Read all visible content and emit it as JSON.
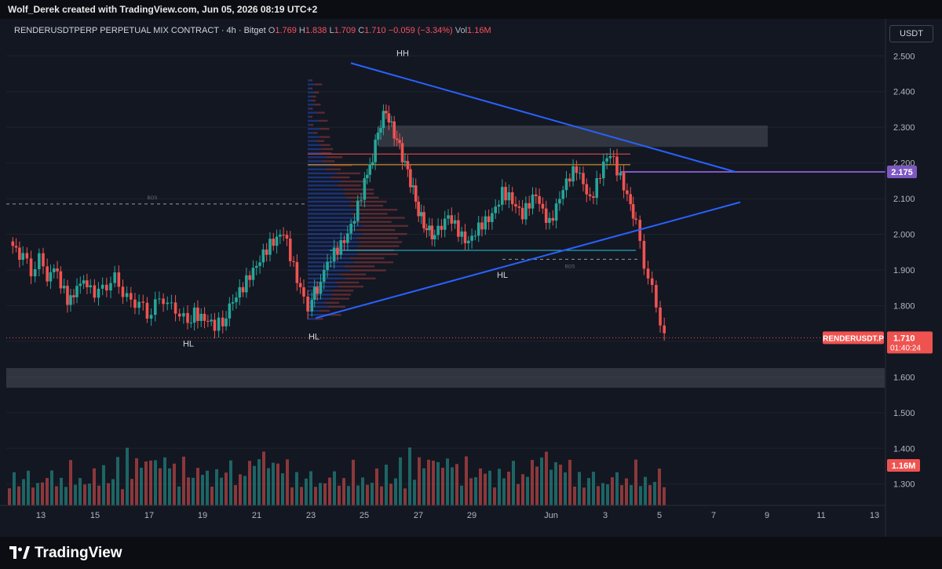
{
  "header": {
    "caption": "Wolf_Derek created with TradingView.com, Jun 05, 2026 08:19 UTC+2"
  },
  "legend": {
    "symbol": "RENDERUSDTPERP PERPETUAL MIX CONTRACT · 4h · Bitget",
    "o_label": "O",
    "o": "1.769",
    "h_label": "H",
    "h": "1.838",
    "l_label": "L",
    "l": "1.709",
    "c_label": "C",
    "c": "1.710",
    "change": "−0.059 (−3.34%)",
    "vol_label": "Vol",
    "vol": "1.16M"
  },
  "currency_button": "USDT",
  "colors": {
    "up": "#26a69a",
    "down": "#ef5350",
    "trendline": "#2962ff",
    "level_purple": "#7e57c2",
    "background": "#131722"
  },
  "footer": {
    "brand": "TradingView"
  },
  "chart_data": {
    "type": "candlestick",
    "timeframe": "4h",
    "ylim": [
      1.24,
      2.56
    ],
    "y_ticks": [
      "2.500",
      "2.400",
      "2.300",
      "2.200",
      "2.100",
      "2.000",
      "1.900",
      "1.800",
      "1.700",
      "1.600",
      "1.500",
      "1.400",
      "1.300"
    ],
    "x_ticks": [
      "13",
      "15",
      "17",
      "19",
      "21",
      "23",
      "25",
      "27",
      "29",
      "Jun",
      "3",
      "5",
      "7",
      "9",
      "11",
      "13"
    ],
    "price_label": {
      "symbol": "RENDERUSDT.P",
      "price": "1.710",
      "countdown": "01:40:24"
    },
    "level_label": "2.175",
    "volume_label": "1.16M",
    "annotations": [
      "HH",
      "HL",
      "HL",
      "HL",
      "BOS",
      "BOS"
    ],
    "key_levels": {
      "current": 1.71,
      "purple": 2.175,
      "red": 2.225,
      "orange": 2.195,
      "cyan": 1.955,
      "dashed_bos_left": 2.085,
      "dashed_bos_right": 1.93
    },
    "zones": [
      {
        "from": 2.245,
        "to": 2.305
      },
      {
        "from": 1.57,
        "to": 1.625
      }
    ],
    "trendlines": [
      {
        "name": "upper",
        "from": [
          "Jun 23",
          2.48
        ],
        "to": [
          "Jun 8",
          2.175
        ]
      },
      {
        "name": "lower",
        "from": [
          "Jun 23",
          1.765
        ],
        "to": [
          "Jun 8",
          2.09
        ]
      }
    ],
    "series_path": [
      [
        0,
        1.98
      ],
      [
        10,
        1.93
      ],
      [
        16,
        1.9
      ],
      [
        22,
        1.93
      ],
      [
        28,
        1.88
      ],
      [
        33,
        1.9
      ],
      [
        38,
        1.86
      ],
      [
        43,
        1.82
      ],
      [
        50,
        1.84
      ],
      [
        55,
        1.88
      ],
      [
        60,
        1.85
      ],
      [
        66,
        1.83
      ],
      [
        72,
        1.86
      ],
      [
        78,
        1.88
      ],
      [
        84,
        1.83
      ],
      [
        90,
        1.82
      ],
      [
        96,
        1.8
      ],
      [
        102,
        1.78
      ],
      [
        108,
        1.8
      ],
      [
        114,
        1.82
      ],
      [
        120,
        1.8
      ],
      [
        126,
        1.77
      ],
      [
        132,
        1.76
      ],
      [
        137,
        1.78
      ],
      [
        142,
        1.76
      ],
      [
        147,
        1.75
      ],
      [
        152,
        1.74
      ],
      [
        158,
        1.76
      ],
      [
        163,
        1.79
      ],
      [
        168,
        1.82
      ],
      [
        173,
        1.85
      ],
      [
        178,
        1.89
      ],
      [
        183,
        1.92
      ],
      [
        188,
        1.95
      ],
      [
        193,
        1.97
      ],
      [
        198,
        1.98
      ],
      [
        203,
        2.0
      ],
      [
        208,
        1.94
      ],
      [
        213,
        1.88
      ],
      [
        218,
        1.83
      ],
      [
        221,
        1.8
      ],
      [
        224,
        1.82
      ],
      [
        228,
        1.85
      ],
      [
        233,
        1.89
      ],
      [
        238,
        1.93
      ],
      [
        243,
        1.96
      ],
      [
        248,
        1.99
      ],
      [
        253,
        2.03
      ],
      [
        258,
        2.08
      ],
      [
        263,
        2.14
      ],
      [
        267,
        2.19
      ],
      [
        271,
        2.25
      ],
      [
        275,
        2.31
      ],
      [
        279,
        2.35
      ],
      [
        283,
        2.3
      ],
      [
        287,
        2.26
      ],
      [
        291,
        2.22
      ],
      [
        295,
        2.18
      ],
      [
        299,
        2.12
      ],
      [
        303,
        2.06
      ],
      [
        307,
        2.03
      ],
      [
        311,
        2.01
      ],
      [
        315,
        1.99
      ],
      [
        320,
        2.03
      ],
      [
        325,
        2.06
      ],
      [
        330,
        2.03
      ],
      [
        335,
        1.99
      ],
      [
        340,
        1.97
      ],
      [
        345,
        2.0
      ],
      [
        350,
        2.03
      ],
      [
        355,
        2.05
      ],
      [
        360,
        2.08
      ],
      [
        365,
        2.12
      ],
      [
        370,
        2.1
      ],
      [
        375,
        2.07
      ],
      [
        380,
        2.05
      ],
      [
        385,
        2.09
      ],
      [
        390,
        2.12
      ],
      [
        395,
        2.07
      ],
      [
        400,
        2.03
      ],
      [
        405,
        2.07
      ],
      [
        410,
        2.12
      ],
      [
        415,
        2.16
      ],
      [
        420,
        2.19
      ],
      [
        425,
        2.15
      ],
      [
        430,
        2.1
      ],
      [
        435,
        2.14
      ],
      [
        440,
        2.19
      ],
      [
        445,
        2.22
      ],
      [
        450,
        2.18
      ],
      [
        455,
        2.14
      ],
      [
        460,
        2.09
      ],
      [
        464,
        2.03
      ],
      [
        467,
        1.97
      ],
      [
        470,
        1.92
      ],
      [
        473,
        1.88
      ],
      [
        476,
        1.84
      ],
      [
        479,
        1.8
      ],
      [
        482,
        1.76
      ],
      [
        485,
        1.71
      ]
    ],
    "volume_series": [
      0.28,
      0.3,
      0.22,
      0.27,
      0.33,
      0.24,
      0.2,
      0.31,
      0.26,
      0.36,
      0.22,
      0.25,
      0.3,
      0.41,
      0.24,
      0.28,
      0.2,
      0.29,
      0.33,
      0.27,
      0.38,
      0.23,
      0.3,
      0.44,
      0.26,
      0.52,
      0.31,
      0.48,
      0.36,
      0.58,
      0.4,
      0.62,
      0.35,
      0.5,
      0.42,
      0.38,
      0.3,
      0.44,
      0.33,
      0.28,
      0.36,
      0.4,
      0.31,
      0.26,
      0.34,
      0.29,
      0.37,
      0.41,
      0.32,
      0.28,
      0.35,
      0.45,
      0.38,
      0.6,
      0.48,
      0.52,
      0.4,
      0.44,
      0.36,
      0.42
    ]
  }
}
